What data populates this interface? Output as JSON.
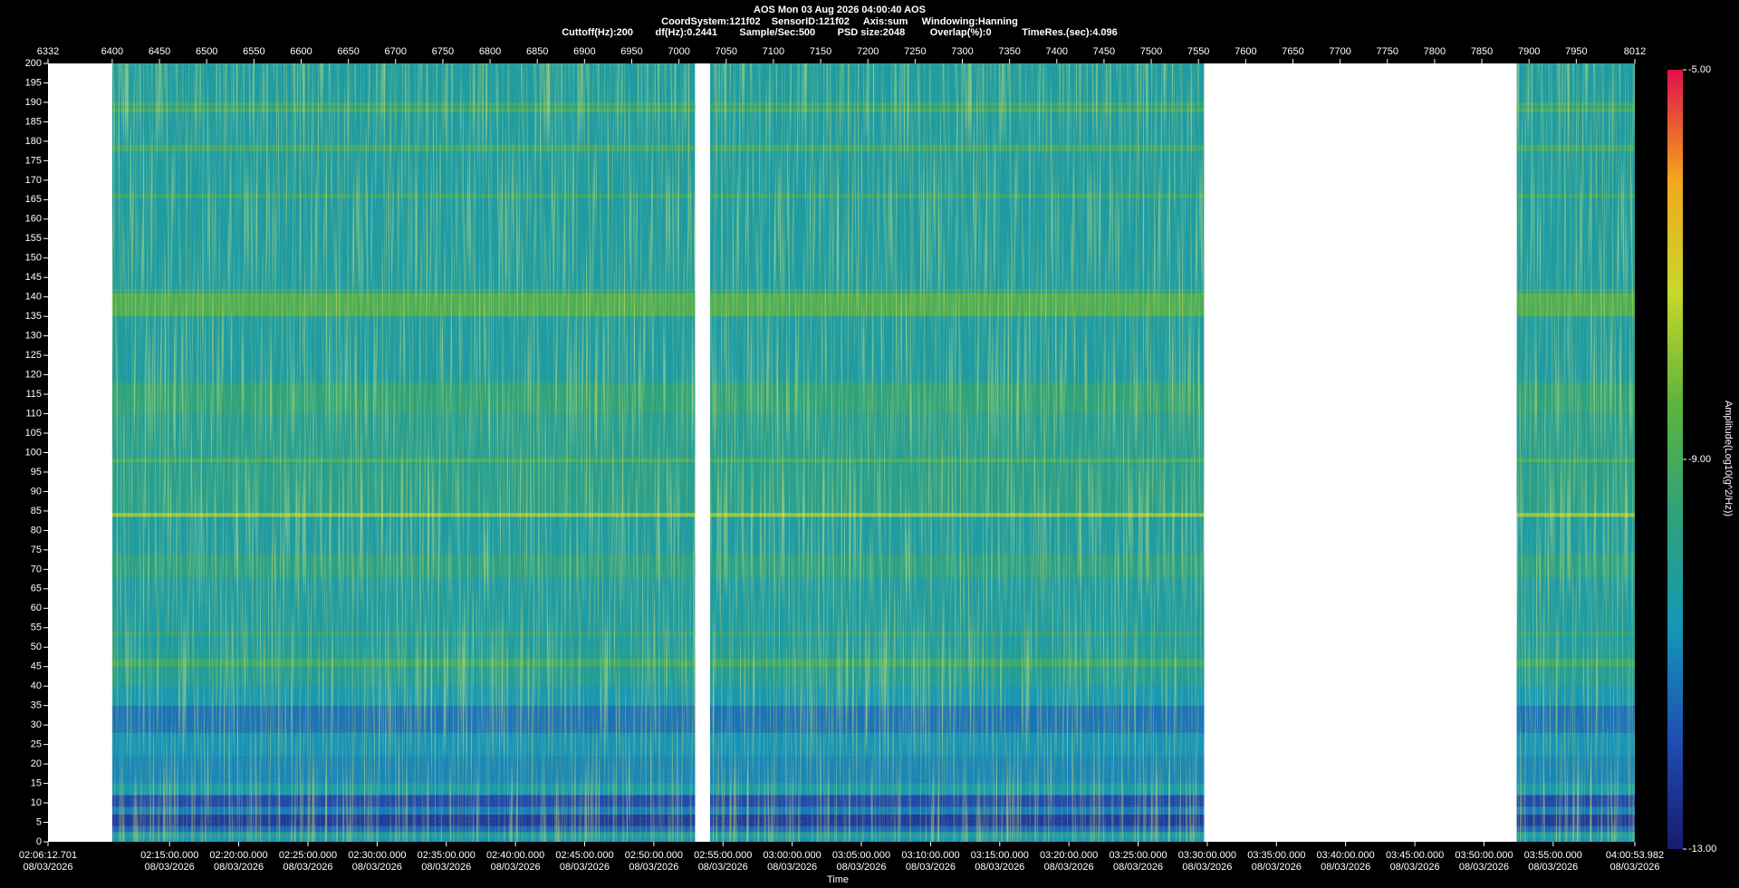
{
  "chart_data": {
    "type": "spectrogram",
    "title": "AOS  Mon 03 Aug 2026 04:00:40  AOS",
    "subtitle_lines": [
      "CoordSystem:121f02    SensorID:121f02     Axis:sum     Windowing:Hanning",
      "Cuttoff(Hz):200        df(Hz):0.2441        Sample/Sec:500        PSD size:2048         Overlap(%):0           TimeRes.(sec):4.096"
    ],
    "xlabel": "Time",
    "colorbar_label": "Amplitude(Log10(g^2/Hz))",
    "xlim": [
      6332,
      8012
    ],
    "xticks": [
      6332,
      6400,
      6450,
      6500,
      6550,
      6600,
      6650,
      6700,
      6750,
      6800,
      6850,
      6900,
      6950,
      7000,
      7050,
      7100,
      7150,
      7200,
      7250,
      7300,
      7350,
      7400,
      7450,
      7500,
      7550,
      7600,
      7650,
      7700,
      7750,
      7800,
      7850,
      7900,
      7950,
      8012
    ],
    "time_ticks": [
      {
        "value": 6332,
        "label": "02:06:12.701"
      },
      {
        "value": 6460.7,
        "label": "02:15:00.000"
      },
      {
        "value": 6533.9,
        "label": "02:20:00.000"
      },
      {
        "value": 6607.2,
        "label": "02:25:00.000"
      },
      {
        "value": 6680.4,
        "label": "02:30:00.000"
      },
      {
        "value": 6753.7,
        "label": "02:35:00.000"
      },
      {
        "value": 6826.9,
        "label": "02:40:00.000"
      },
      {
        "value": 6900.1,
        "label": "02:45:00.000"
      },
      {
        "value": 6973.4,
        "label": "02:50:00.000"
      },
      {
        "value": 7046.6,
        "label": "02:55:00.000"
      },
      {
        "value": 7119.9,
        "label": "03:00:00.000"
      },
      {
        "value": 7193.1,
        "label": "03:05:00.000"
      },
      {
        "value": 7266.4,
        "label": "03:10:00.000"
      },
      {
        "value": 7339.6,
        "label": "03:15:00.000"
      },
      {
        "value": 7412.8,
        "label": "03:20:00.000"
      },
      {
        "value": 7486.1,
        "label": "03:25:00.000"
      },
      {
        "value": 7559.3,
        "label": "03:30:00.000"
      },
      {
        "value": 7632.6,
        "label": "03:35:00.000"
      },
      {
        "value": 7705.8,
        "label": "03:40:00.000"
      },
      {
        "value": 7779.1,
        "label": "03:45:00.000"
      },
      {
        "value": 7852.3,
        "label": "03:50:00.000"
      },
      {
        "value": 7925.5,
        "label": "03:55:00.000"
      },
      {
        "value": 8012,
        "label": "04:00:53.982"
      }
    ],
    "time_tick_dates": [
      "08/03/2026",
      "08/03/2026",
      "08/03/2026",
      "08/03/2026",
      "08/03/2026",
      "08/03/2026",
      "08/03/2026",
      "08/03/2026",
      "08/03/2026",
      "08/03/2026",
      "08/03/2026",
      "08/03/2026",
      "08/03/2026",
      "08/03/2026",
      "08/03/2026",
      "08/03/2026",
      "08/03/2026",
      "08/03/2026",
      "08/03/2026",
      "08/03/2026",
      "08/03/2026",
      "08/03/2026",
      "08/03/2026"
    ],
    "ylim": [
      0,
      200
    ],
    "yticks": [
      0,
      5,
      10,
      15,
      20,
      25,
      30,
      35,
      40,
      45,
      50,
      55,
      60,
      65,
      70,
      75,
      80,
      85,
      90,
      95,
      100,
      105,
      110,
      115,
      120,
      125,
      130,
      135,
      140,
      145,
      150,
      155,
      160,
      165,
      170,
      175,
      180,
      185,
      190,
      195,
      200
    ],
    "clim": [
      -13,
      -5
    ],
    "cticks": [
      {
        "value": -13,
        "label": "-13.00"
      },
      {
        "value": -9,
        "label": "-9.00"
      },
      {
        "value": -5,
        "label": "-5.00"
      }
    ],
    "colormap": [
      "#1a1a6e",
      "#1f4fb4",
      "#1597b5",
      "#2fa27a",
      "#5db33c",
      "#c8d82a",
      "#f2a81d",
      "#e0104a"
    ],
    "segments": [
      [
        6400,
        7017
      ],
      [
        7033,
        7556
      ],
      [
        7887,
        8012
      ]
    ],
    "bands": [
      {
        "lo": 0,
        "hi": 200,
        "level": -10.3
      },
      {
        "lo": 0,
        "hi": 1,
        "level": -10.8
      },
      {
        "lo": 1,
        "hi": 2.5,
        "level": -10.2
      },
      {
        "lo": 2.5,
        "hi": 4,
        "level": -11.5
      },
      {
        "lo": 4,
        "hi": 7,
        "level": -12.3
      },
      {
        "lo": 7,
        "hi": 9,
        "level": -11.2
      },
      {
        "lo": 9,
        "hi": 12,
        "level": -12
      },
      {
        "lo": 12,
        "hi": 15,
        "level": -10.5
      },
      {
        "lo": 15,
        "hi": 22,
        "level": -11
      },
      {
        "lo": 22,
        "hi": 28,
        "level": -10.8
      },
      {
        "lo": 28,
        "hi": 35,
        "level": -11.3
      },
      {
        "lo": 35,
        "hi": 40,
        "level": -10.6
      },
      {
        "lo": 40,
        "hi": 50,
        "level": -10.1
      },
      {
        "lo": 45,
        "hi": 47,
        "level": -9.2
      },
      {
        "lo": 53,
        "hi": 54,
        "level": -9.5
      },
      {
        "lo": 68,
        "hi": 74,
        "level": -9.8
      },
      {
        "lo": 83.5,
        "hi": 84.5,
        "level": -7.8
      },
      {
        "lo": 84.5,
        "hi": 97,
        "level": -9.9
      },
      {
        "lo": 97.5,
        "hi": 98.5,
        "level": -8.8
      },
      {
        "lo": 98.5,
        "hi": 110,
        "level": -10
      },
      {
        "lo": 110,
        "hi": 118,
        "level": -9.6
      },
      {
        "lo": 135,
        "hi": 141,
        "level": -8.8
      },
      {
        "lo": 141.5,
        "hi": 142,
        "level": -9.2
      },
      {
        "lo": 165.5,
        "hi": 166.5,
        "level": -9.3
      },
      {
        "lo": 177.5,
        "hi": 179,
        "level": -9.2
      },
      {
        "lo": 187.5,
        "hi": 188.5,
        "level": -9
      },
      {
        "lo": 189,
        "hi": 190,
        "level": -9.3
      }
    ]
  }
}
